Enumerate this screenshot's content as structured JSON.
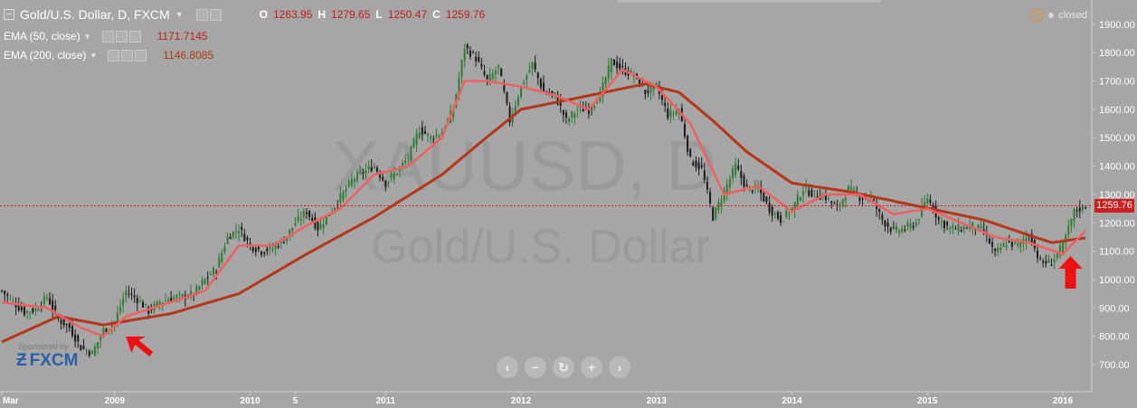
{
  "header": {
    "symbol_title": "Gold/U.S. Dollar, D, FXCM",
    "ohlc": [
      {
        "key": "O",
        "value": "1263.95"
      },
      {
        "key": "H",
        "value": "1279.65"
      },
      {
        "key": "L",
        "value": "1250.47"
      },
      {
        "key": "C",
        "value": "1259.76"
      }
    ],
    "market_status": "closed"
  },
  "indicators": [
    {
      "label": "EMA (50, close)",
      "value": "1171.7145",
      "color": "#e85a5a"
    },
    {
      "label": "EMA (200, close)",
      "value": "1146.8085",
      "color": "#b5361a"
    }
  ],
  "watermark": {
    "symbol": "XAUUSD, D",
    "name": "Gold/U.S. Dollar"
  },
  "sponsor": {
    "text": "Sponsored by",
    "brand": "FXCM"
  },
  "controls": [
    {
      "name": "scroll-left",
      "glyph": "‹"
    },
    {
      "name": "zoom-out",
      "glyph": "−"
    },
    {
      "name": "reset",
      "glyph": "↻"
    },
    {
      "name": "zoom-in",
      "glyph": "+"
    },
    {
      "name": "scroll-right",
      "glyph": "›"
    }
  ],
  "last_price_label": "1259.76",
  "colors": {
    "background": "#a6a6a6",
    "candle_up": "#2e7d32",
    "candle_down": "#1a1a1a",
    "ema50": "#f06060",
    "ema200": "#b5361a",
    "price_line": "#cc1f1f",
    "arrow": "#ee1111"
  },
  "chart_data": {
    "type": "candlestick",
    "title": "Gold/U.S. Dollar, D, FXCM",
    "ylim": [
      630,
      1960
    ],
    "y_ticks": [
      "700.00",
      "800.00",
      "900.00",
      "1000.00",
      "1100.00",
      "1200.00",
      "1300.00",
      "1400.00",
      "1500.00",
      "1600.00",
      "1700.00",
      "1800.00",
      "1900.00"
    ],
    "x_ticks": [
      {
        "label": "Mar",
        "date": "2008-03"
      },
      {
        "label": "2009",
        "date": "2009-01"
      },
      {
        "label": "2010",
        "date": "2010-01"
      },
      {
        "label": "5",
        "date": "2010-05"
      },
      {
        "label": "2011",
        "date": "2011-01"
      },
      {
        "label": "2012",
        "date": "2012-01"
      },
      {
        "label": "2013",
        "date": "2013-01"
      },
      {
        "label": "2014",
        "date": "2014-01"
      },
      {
        "label": "2015",
        "date": "2015-01"
      },
      {
        "label": "2016",
        "date": "2016-01"
      }
    ],
    "price_series": {
      "name": "Gold/U.S. Dollar",
      "points": [
        [
          "2008-03",
          960
        ],
        [
          "2008-04",
          920
        ],
        [
          "2008-05",
          885
        ],
        [
          "2008-06",
          895
        ],
        [
          "2008-07",
          940
        ],
        [
          "2008-08",
          860
        ],
        [
          "2008-09",
          830
        ],
        [
          "2008-10",
          760
        ],
        [
          "2008-11",
          740
        ],
        [
          "2008-12",
          820
        ],
        [
          "2009-01",
          850
        ],
        [
          "2009-02",
          960
        ],
        [
          "2009-03",
          930
        ],
        [
          "2009-04",
          890
        ],
        [
          "2009-05",
          920
        ],
        [
          "2009-06",
          935
        ],
        [
          "2009-07",
          940
        ],
        [
          "2009-08",
          950
        ],
        [
          "2009-09",
          1000
        ],
        [
          "2009-10",
          1040
        ],
        [
          "2009-11",
          1150
        ],
        [
          "2009-12",
          1180
        ],
        [
          "2010-01",
          1120
        ],
        [
          "2010-02",
          1100
        ],
        [
          "2010-03",
          1110
        ],
        [
          "2010-04",
          1140
        ],
        [
          "2010-05",
          1200
        ],
        [
          "2010-06",
          1240
        ],
        [
          "2010-07",
          1180
        ],
        [
          "2010-08",
          1230
        ],
        [
          "2010-09",
          1290
        ],
        [
          "2010-10",
          1350
        ],
        [
          "2010-11",
          1380
        ],
        [
          "2010-12",
          1400
        ],
        [
          "2011-01",
          1340
        ],
        [
          "2011-02",
          1380
        ],
        [
          "2011-03",
          1430
        ],
        [
          "2011-04",
          1530
        ],
        [
          "2011-05",
          1500
        ],
        [
          "2011-06",
          1520
        ],
        [
          "2011-07",
          1600
        ],
        [
          "2011-08",
          1820
        ],
        [
          "2011-09",
          1780
        ],
        [
          "2011-10",
          1700
        ],
        [
          "2011-11",
          1750
        ],
        [
          "2011-12",
          1560
        ],
        [
          "2012-01",
          1680
        ],
        [
          "2012-02",
          1760
        ],
        [
          "2012-03",
          1660
        ],
        [
          "2012-04",
          1650
        ],
        [
          "2012-05",
          1560
        ],
        [
          "2012-06",
          1600
        ],
        [
          "2012-07",
          1600
        ],
        [
          "2012-08",
          1650
        ],
        [
          "2012-09",
          1770
        ],
        [
          "2012-10",
          1740
        ],
        [
          "2012-11",
          1720
        ],
        [
          "2012-12",
          1660
        ],
        [
          "2013-01",
          1680
        ],
        [
          "2013-02",
          1580
        ],
        [
          "2013-03",
          1600
        ],
        [
          "2013-04",
          1420
        ],
        [
          "2013-05",
          1390
        ],
        [
          "2013-06",
          1220
        ],
        [
          "2013-07",
          1310
        ],
        [
          "2013-08",
          1400
        ],
        [
          "2013-09",
          1320
        ],
        [
          "2013-10",
          1320
        ],
        [
          "2013-11",
          1250
        ],
        [
          "2013-12",
          1210
        ],
        [
          "2014-01",
          1250
        ],
        [
          "2014-02",
          1320
        ],
        [
          "2014-03",
          1300
        ],
        [
          "2014-04",
          1290
        ],
        [
          "2014-05",
          1250
        ],
        [
          "2014-06",
          1320
        ],
        [
          "2014-07",
          1290
        ],
        [
          "2014-08",
          1290
        ],
        [
          "2014-09",
          1210
        ],
        [
          "2014-10",
          1170
        ],
        [
          "2014-11",
          1180
        ],
        [
          "2014-12",
          1200
        ],
        [
          "2015-01",
          1290
        ],
        [
          "2015-02",
          1210
        ],
        [
          "2015-03",
          1180
        ],
        [
          "2015-04",
          1180
        ],
        [
          "2015-05",
          1190
        ],
        [
          "2015-06",
          1170
        ],
        [
          "2015-07",
          1090
        ],
        [
          "2015-08",
          1130
        ],
        [
          "2015-09",
          1120
        ],
        [
          "2015-10",
          1160
        ],
        [
          "2015-11",
          1060
        ],
        [
          "2015-12",
          1060
        ],
        [
          "2016-01",
          1120
        ],
        [
          "2016-02",
          1240
        ],
        [
          "2016-03",
          1259.76
        ]
      ]
    },
    "ema50": {
      "name": "EMA (50, close)",
      "points": [
        [
          "2008-03",
          920
        ],
        [
          "2008-07",
          900
        ],
        [
          "2008-10",
          830
        ],
        [
          "2008-12",
          800
        ],
        [
          "2009-02",
          870
        ],
        [
          "2009-06",
          920
        ],
        [
          "2009-09",
          960
        ],
        [
          "2009-12",
          1120
        ],
        [
          "2010-03",
          1120
        ],
        [
          "2010-06",
          1190
        ],
        [
          "2010-09",
          1250
        ],
        [
          "2010-12",
          1370
        ],
        [
          "2011-03",
          1400
        ],
        [
          "2011-06",
          1500
        ],
        [
          "2011-08",
          1700
        ],
        [
          "2011-10",
          1700
        ],
        [
          "2012-01",
          1680
        ],
        [
          "2012-04",
          1650
        ],
        [
          "2012-07",
          1600
        ],
        [
          "2012-10",
          1740
        ],
        [
          "2013-01",
          1680
        ],
        [
          "2013-04",
          1550
        ],
        [
          "2013-07",
          1300
        ],
        [
          "2013-10",
          1330
        ],
        [
          "2014-01",
          1240
        ],
        [
          "2014-04",
          1300
        ],
        [
          "2014-07",
          1300
        ],
        [
          "2014-10",
          1230
        ],
        [
          "2015-01",
          1250
        ],
        [
          "2015-04",
          1200
        ],
        [
          "2015-07",
          1150
        ],
        [
          "2015-10",
          1130
        ],
        [
          "2016-01",
          1090
        ],
        [
          "2016-03",
          1171.7145
        ]
      ]
    },
    "ema200": {
      "name": "EMA (200, close)",
      "points": [
        [
          "2008-03",
          780
        ],
        [
          "2008-08",
          870
        ],
        [
          "2008-12",
          840
        ],
        [
          "2009-03",
          860
        ],
        [
          "2009-06",
          880
        ],
        [
          "2009-12",
          950
        ],
        [
          "2010-06",
          1090
        ],
        [
          "2010-12",
          1220
        ],
        [
          "2011-06",
          1370
        ],
        [
          "2011-09",
          1470
        ],
        [
          "2012-01",
          1600
        ],
        [
          "2012-06",
          1640
        ],
        [
          "2012-12",
          1690
        ],
        [
          "2013-03",
          1660
        ],
        [
          "2013-06",
          1560
        ],
        [
          "2013-09",
          1450
        ],
        [
          "2014-01",
          1340
        ],
        [
          "2014-06",
          1310
        ],
        [
          "2014-12",
          1260
        ],
        [
          "2015-06",
          1210
        ],
        [
          "2015-12",
          1130
        ],
        [
          "2016-03",
          1146.8085
        ]
      ]
    },
    "last_price": 1259.76,
    "annotations": [
      {
        "type": "arrow",
        "at": "2009-02",
        "direction": "up-left",
        "color": "#ee1111"
      },
      {
        "type": "arrow",
        "at": "2016-02",
        "direction": "up",
        "color": "#ee1111"
      }
    ],
    "grid": false,
    "legend": "top-left"
  }
}
